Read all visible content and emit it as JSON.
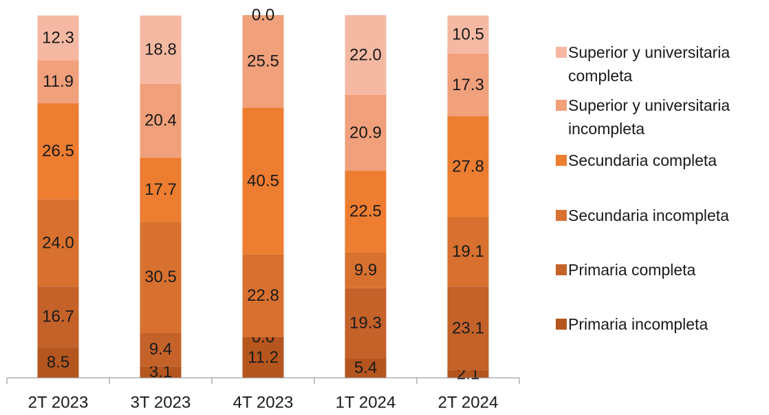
{
  "chart_data": {
    "type": "stacked_bar",
    "categories": [
      "2T 2023",
      "3T 2023",
      "4T 2023",
      "1T 2024",
      "2T 2024"
    ],
    "ylim": [
      0,
      100
    ],
    "series": [
      {
        "name": "Primaria incompleta",
        "color": "#b5561f",
        "values": [
          8.5,
          3.1,
          11.2,
          5.4,
          2.1
        ],
        "value_labels": [
          "8.5",
          "3.1",
          "11.2",
          "5.4",
          "2.1"
        ]
      },
      {
        "name": "Primaria completa",
        "color": "#c4622a",
        "values": [
          16.7,
          9.4,
          0.0,
          19.3,
          23.1
        ],
        "value_labels": [
          "16.7",
          "9.4",
          "0.0",
          "19.3",
          "23.1"
        ]
      },
      {
        "name": "Secundaria incompleta",
        "color": "#d8712f",
        "values": [
          24.0,
          30.5,
          22.8,
          9.9,
          19.1
        ],
        "value_labels": [
          "24.0",
          "30.5",
          "22.8",
          "9.9",
          "19.1"
        ]
      },
      {
        "name": "Secundaria completa",
        "color": "#ed7d31",
        "values": [
          26.5,
          17.7,
          40.5,
          22.5,
          27.8
        ],
        "value_labels": [
          "26.5",
          "17.7",
          "40.5",
          "22.5",
          "27.8"
        ]
      },
      {
        "name": "Superior y universitaria incompleta",
        "color": "#f0a07b",
        "values": [
          11.9,
          20.4,
          25.5,
          20.9,
          17.3
        ],
        "value_labels": [
          "11.9",
          "20.4",
          "25.5",
          "20.9",
          "17.3"
        ]
      },
      {
        "name": "Superior y universitaria completa",
        "color": "#f5b9a3",
        "values": [
          12.3,
          18.8,
          0.0,
          22.0,
          10.5
        ],
        "value_labels": [
          "12.3",
          "18.8",
          "0.0",
          "22.0",
          "10.5"
        ]
      }
    ]
  }
}
